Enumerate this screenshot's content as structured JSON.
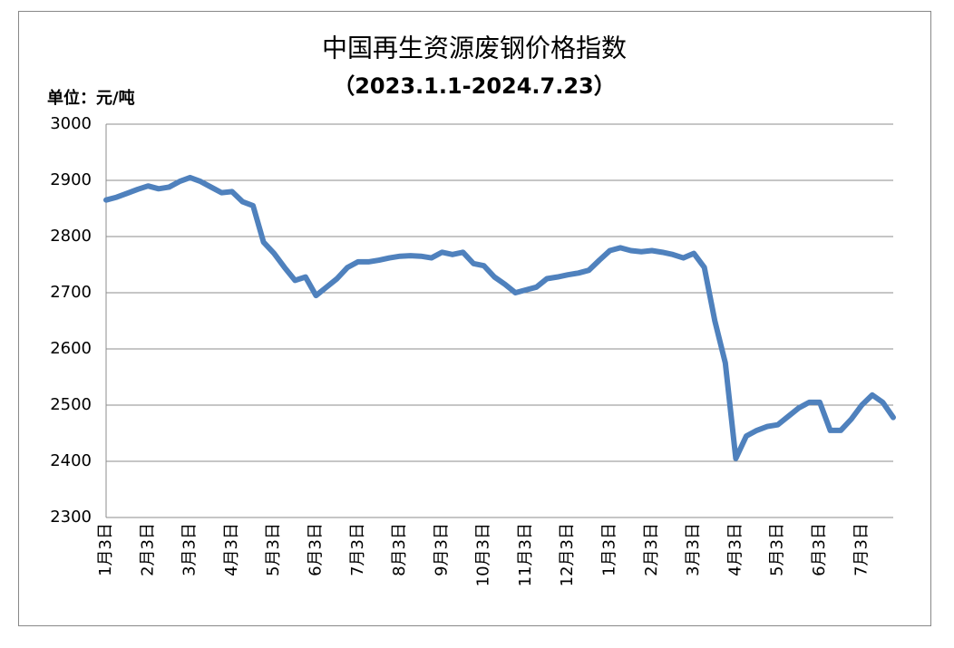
{
  "chart_data": {
    "type": "line",
    "title": "中国再生资源废钢价格指数",
    "subtitle": "（2023.1.1-2024.7.23）",
    "y_unit_label": "单位：元/吨",
    "categories": [
      "1月3日",
      null,
      null,
      null,
      "2月3日",
      null,
      null,
      null,
      "3月3日",
      null,
      null,
      null,
      "4月3日",
      null,
      null,
      null,
      "5月3日",
      null,
      null,
      null,
      "6月3日",
      null,
      null,
      null,
      "7月3日",
      null,
      null,
      null,
      "8月3日",
      null,
      null,
      null,
      "9月3日",
      null,
      null,
      null,
      "10月3日",
      null,
      null,
      null,
      "11月3日",
      null,
      null,
      null,
      "12月3日",
      null,
      null,
      null,
      "1月3日",
      null,
      null,
      null,
      "2月3日",
      null,
      null,
      null,
      "3月3日",
      null,
      null,
      null,
      "4月3日",
      null,
      null,
      null,
      "5月3日",
      null,
      null,
      null,
      "6月3日",
      null,
      null,
      null,
      "7月3日",
      null,
      null,
      null
    ],
    "series": [
      {
        "color": "#4f81bd",
        "values": [
          2865,
          2870,
          2877,
          2884,
          2890,
          2885,
          2888,
          2898,
          2905,
          2898,
          2888,
          2878,
          2880,
          2862,
          2855,
          2790,
          2770,
          2745,
          2722,
          2728,
          2695,
          2710,
          2725,
          2745,
          2755,
          2755,
          2758,
          2762,
          2765,
          2766,
          2765,
          2762,
          2772,
          2768,
          2772,
          2752,
          2748,
          2728,
          2715,
          2700,
          2705,
          2710,
          2725,
          2728,
          2732,
          2735,
          2740,
          2758,
          2775,
          2780,
          2775,
          2773,
          2775,
          2772,
          2768,
          2762,
          2770,
          2745,
          2650,
          2575,
          2405,
          2445,
          2455,
          2462,
          2465,
          2480,
          2495,
          2505,
          2505,
          2455,
          2455,
          2475,
          2500,
          2518,
          2505,
          2478
        ]
      }
    ],
    "ylim": [
      2300,
      3000
    ],
    "yticks": [
      2300,
      2400,
      2500,
      2600,
      2700,
      2800,
      2900,
      3000
    ],
    "grid": true
  }
}
